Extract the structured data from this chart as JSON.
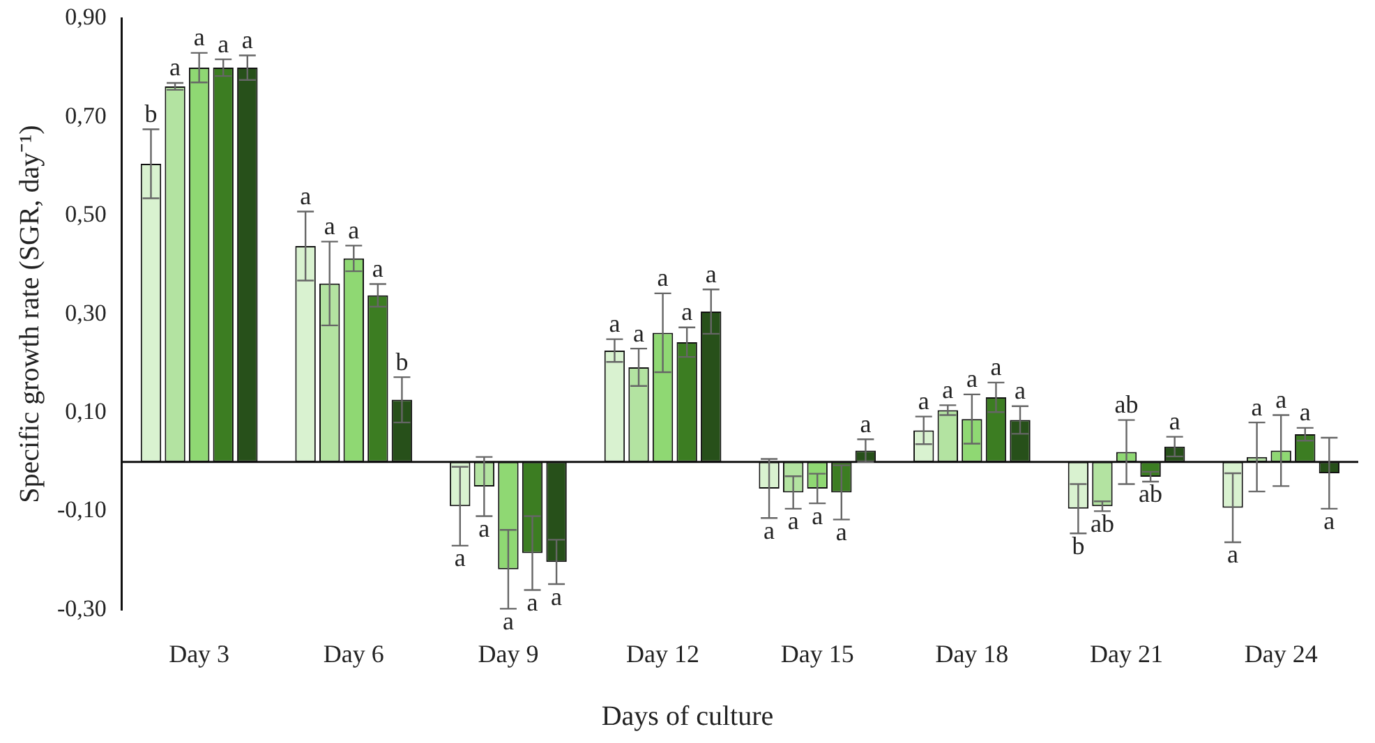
{
  "chart_data": {
    "type": "bar",
    "xlabel": "Days of culture",
    "ylabel": "Specific growth rate (SGR, day⁻¹)",
    "categories": [
      "Day 3",
      "Day 6",
      "Day 9",
      "Day 12",
      "Day 15",
      "Day 18",
      "Day 21",
      "Day 24"
    ],
    "ylim": [
      -0.3,
      0.9
    ],
    "yticks": [
      {
        "value": -0.3,
        "label": "-0,30"
      },
      {
        "value": -0.1,
        "label": "-0,10"
      },
      {
        "value": 0.1,
        "label": "0,10"
      },
      {
        "value": 0.3,
        "label": "0,30"
      },
      {
        "value": 0.5,
        "label": "0,50"
      },
      {
        "value": 0.7,
        "label": "0,70"
      },
      {
        "value": 0.9,
        "label": "0,90"
      }
    ],
    "grid": false,
    "legend": false,
    "series": [
      {
        "color": "#d9f2d0",
        "values": [
          0.605,
          0.438,
          -0.09,
          0.226,
          -0.054,
          0.064,
          -0.095,
          -0.093
        ],
        "errors": [
          0.07,
          0.07,
          0.08,
          0.023,
          0.06,
          0.028,
          0.05,
          0.07
        ],
        "value_labels": [
          "b",
          "a",
          "a",
          "a",
          "a",
          "a",
          "b",
          "a"
        ]
      },
      {
        "color": "#b3e3a1",
        "values": [
          0.762,
          0.362,
          -0.05,
          0.192,
          -0.062,
          0.105,
          -0.09,
          0.01
        ],
        "errors": [
          0.007,
          0.085,
          0.06,
          0.038,
          0.033,
          0.01,
          0.01,
          0.07
        ],
        "value_labels": [
          "a",
          "a",
          "a",
          "a",
          "a",
          "a",
          "ab",
          "a"
        ]
      },
      {
        "color": "#8fd873",
        "values": [
          0.8,
          0.413,
          -0.218,
          0.262,
          -0.054,
          0.087,
          0.02,
          0.023
        ],
        "errors": [
          0.03,
          0.026,
          0.08,
          0.08,
          0.03,
          0.05,
          0.065,
          0.072
        ],
        "value_labels": [
          "a",
          "a",
          "a",
          "a",
          "a",
          "a",
          "ab",
          "a"
        ]
      },
      {
        "color": "#3c7d22",
        "values": [
          0.8,
          0.338,
          -0.185,
          0.243,
          -0.062,
          0.131,
          -0.03,
          0.056
        ],
        "errors": [
          0.017,
          0.023,
          0.075,
          0.03,
          0.055,
          0.03,
          0.01,
          0.013
        ],
        "value_labels": [
          "a",
          "a",
          "a",
          "a",
          "a",
          "a",
          "ab",
          "a"
        ]
      },
      {
        "color": "#27501a",
        "values": [
          0.8,
          0.126,
          -0.203,
          0.305,
          0.023,
          0.085,
          0.031,
          -0.023
        ],
        "errors": [
          0.025,
          0.046,
          0.045,
          0.045,
          0.023,
          0.028,
          0.02,
          0.072
        ],
        "value_labels": [
          "a",
          "b",
          "a",
          "a",
          "a",
          "a",
          "a",
          "a"
        ]
      }
    ]
  }
}
